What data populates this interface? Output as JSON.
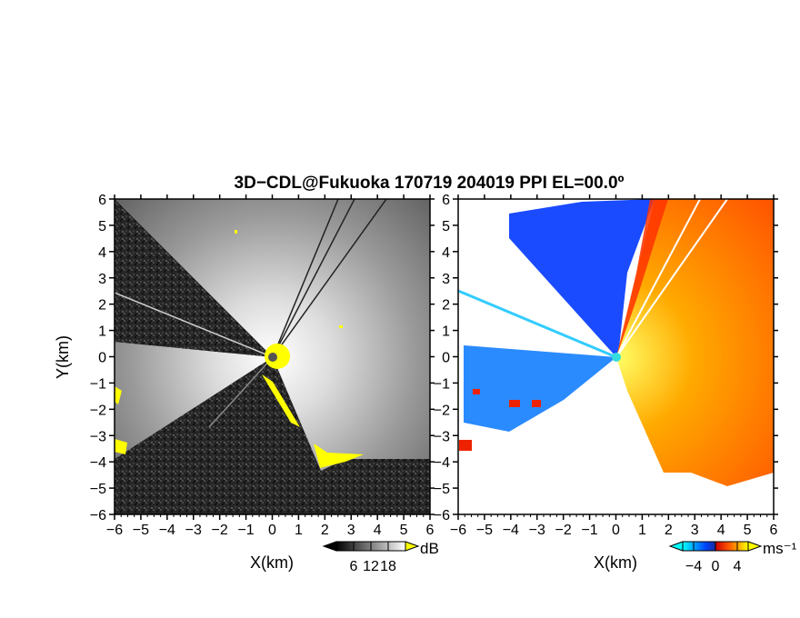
{
  "chart_data": {
    "type": "heatmap",
    "title": "3D−CDL@Fukuoka 170719 204019 PPI EL=00.0º",
    "panels": [
      {
        "name": "reflectivity",
        "xlabel": "X(km)",
        "ylabel": "Y(km)",
        "xlim": [
          -6,
          6
        ],
        "ylim": [
          -6,
          6
        ],
        "xticks": [
          "−6",
          "−5",
          "−4",
          "−3",
          "−2",
          "−1",
          "0",
          "1",
          "2",
          "3",
          "4",
          "5",
          "6"
        ],
        "yticks": [
          "−6",
          "−5",
          "−4",
          "−3",
          "−2",
          "−1",
          "0",
          "1",
          "2",
          "3",
          "4",
          "5",
          "6"
        ],
        "colorbar": {
          "unit": "dB",
          "ticks": [
            "6",
            "12",
            "18"
          ],
          "range": [
            0,
            24
          ],
          "colors": [
            "#000000",
            "#ffffff"
          ],
          "flag_color": "#ffff00"
        }
      },
      {
        "name": "radial-velocity",
        "xlabel": "X(km)",
        "xlim": [
          -6,
          6
        ],
        "ylim": [
          -6,
          6
        ],
        "xticks": [
          "−6",
          "−5",
          "−4",
          "−3",
          "−2",
          "−1",
          "0",
          "1",
          "2",
          "3",
          "4",
          "5",
          "6"
        ],
        "yticks": [
          "−6",
          "−5",
          "−4",
          "−3",
          "−2",
          "−1",
          "0",
          "1",
          "2",
          "3",
          "4",
          "5",
          "6"
        ],
        "colorbar": {
          "unit": "ms⁻¹",
          "ticks": [
            "−4",
            "0",
            "4"
          ],
          "range": [
            -6,
            6
          ],
          "colors": [
            "#00ffff",
            "#0044ff",
            "#ff3300",
            "#ffff00"
          ]
        }
      }
    ]
  }
}
